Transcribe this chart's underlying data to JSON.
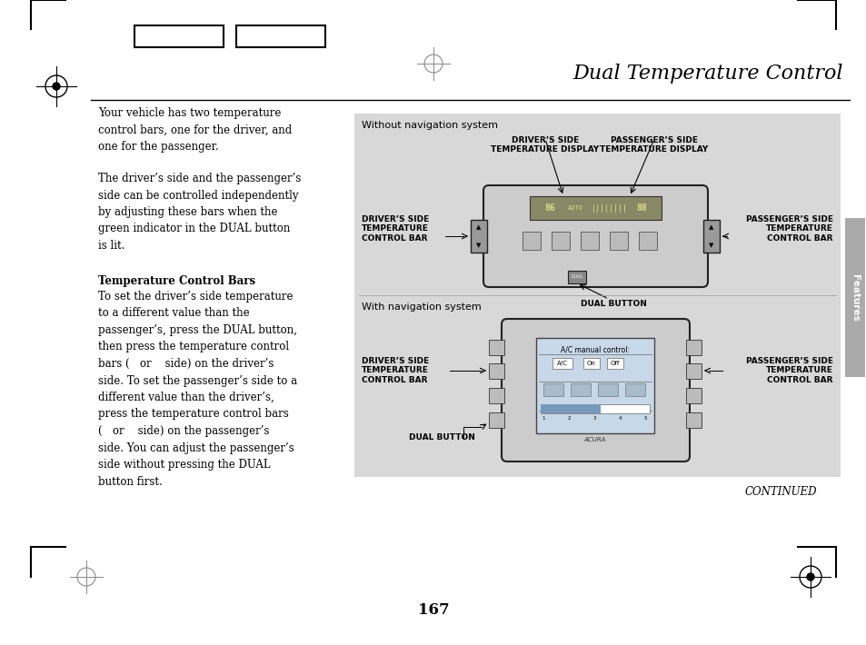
{
  "title": "Dual Temperature Control",
  "page_number": "167",
  "continued_text": "CONTINUED",
  "background_color": "#ffffff",
  "sidebar_color": "#aaaaaa",
  "diagram_bg": "#d8d8d8",
  "body_text_1": "Your vehicle has two temperature\ncontrol bars, one for the driver, and\none for the passenger.",
  "body_text_2": "The driver’s side and the passenger’s\nside can be controlled independently\nby adjusting these bars when the\ngreen indicator in the DUAL button\nis lit.",
  "section_heading": "Temperature Control Bars",
  "body_text_3": "To set the driver’s side temperature\nto a different value than the\npassenger’s, press the DUAL button,\nthen press the temperature control\nbars (   or    side) on the driver’s\nside. To set the passenger’s side to a\ndifferent value than the driver’s,\npress the temperature control bars\n(   or    side) on the passenger’s\nside. You can adjust the passenger’s\nside without pressing the DUAL\nbutton first.",
  "section1_title": "Without navigation system",
  "label_driver_display": "DRIVER’S SIDE\nTEMPERATURE DISPLAY",
  "label_pass_display": "PASSENGER’S SIDE\nTEMPERATURE DISPLAY",
  "label_driver_bar1": "DRIVER’S SIDE\nTEMPERATURE\nCONTROL BAR",
  "label_pass_bar1": "PASSENGER’S SIDE\nTEMPERATURE\nCONTROL BAR",
  "label_dual1": "DUAL BUTTON",
  "section2_title": "With navigation system",
  "label_driver_bar2": "DRIVER’S SIDE\nTEMPERATURE\nCONTROL BAR",
  "label_pass_bar2": "PASSENGER’S SIDE\nTEMPERATURE\nCONTROL BAR",
  "label_dual2": "DUAL BUTTON",
  "features_label": "Features"
}
